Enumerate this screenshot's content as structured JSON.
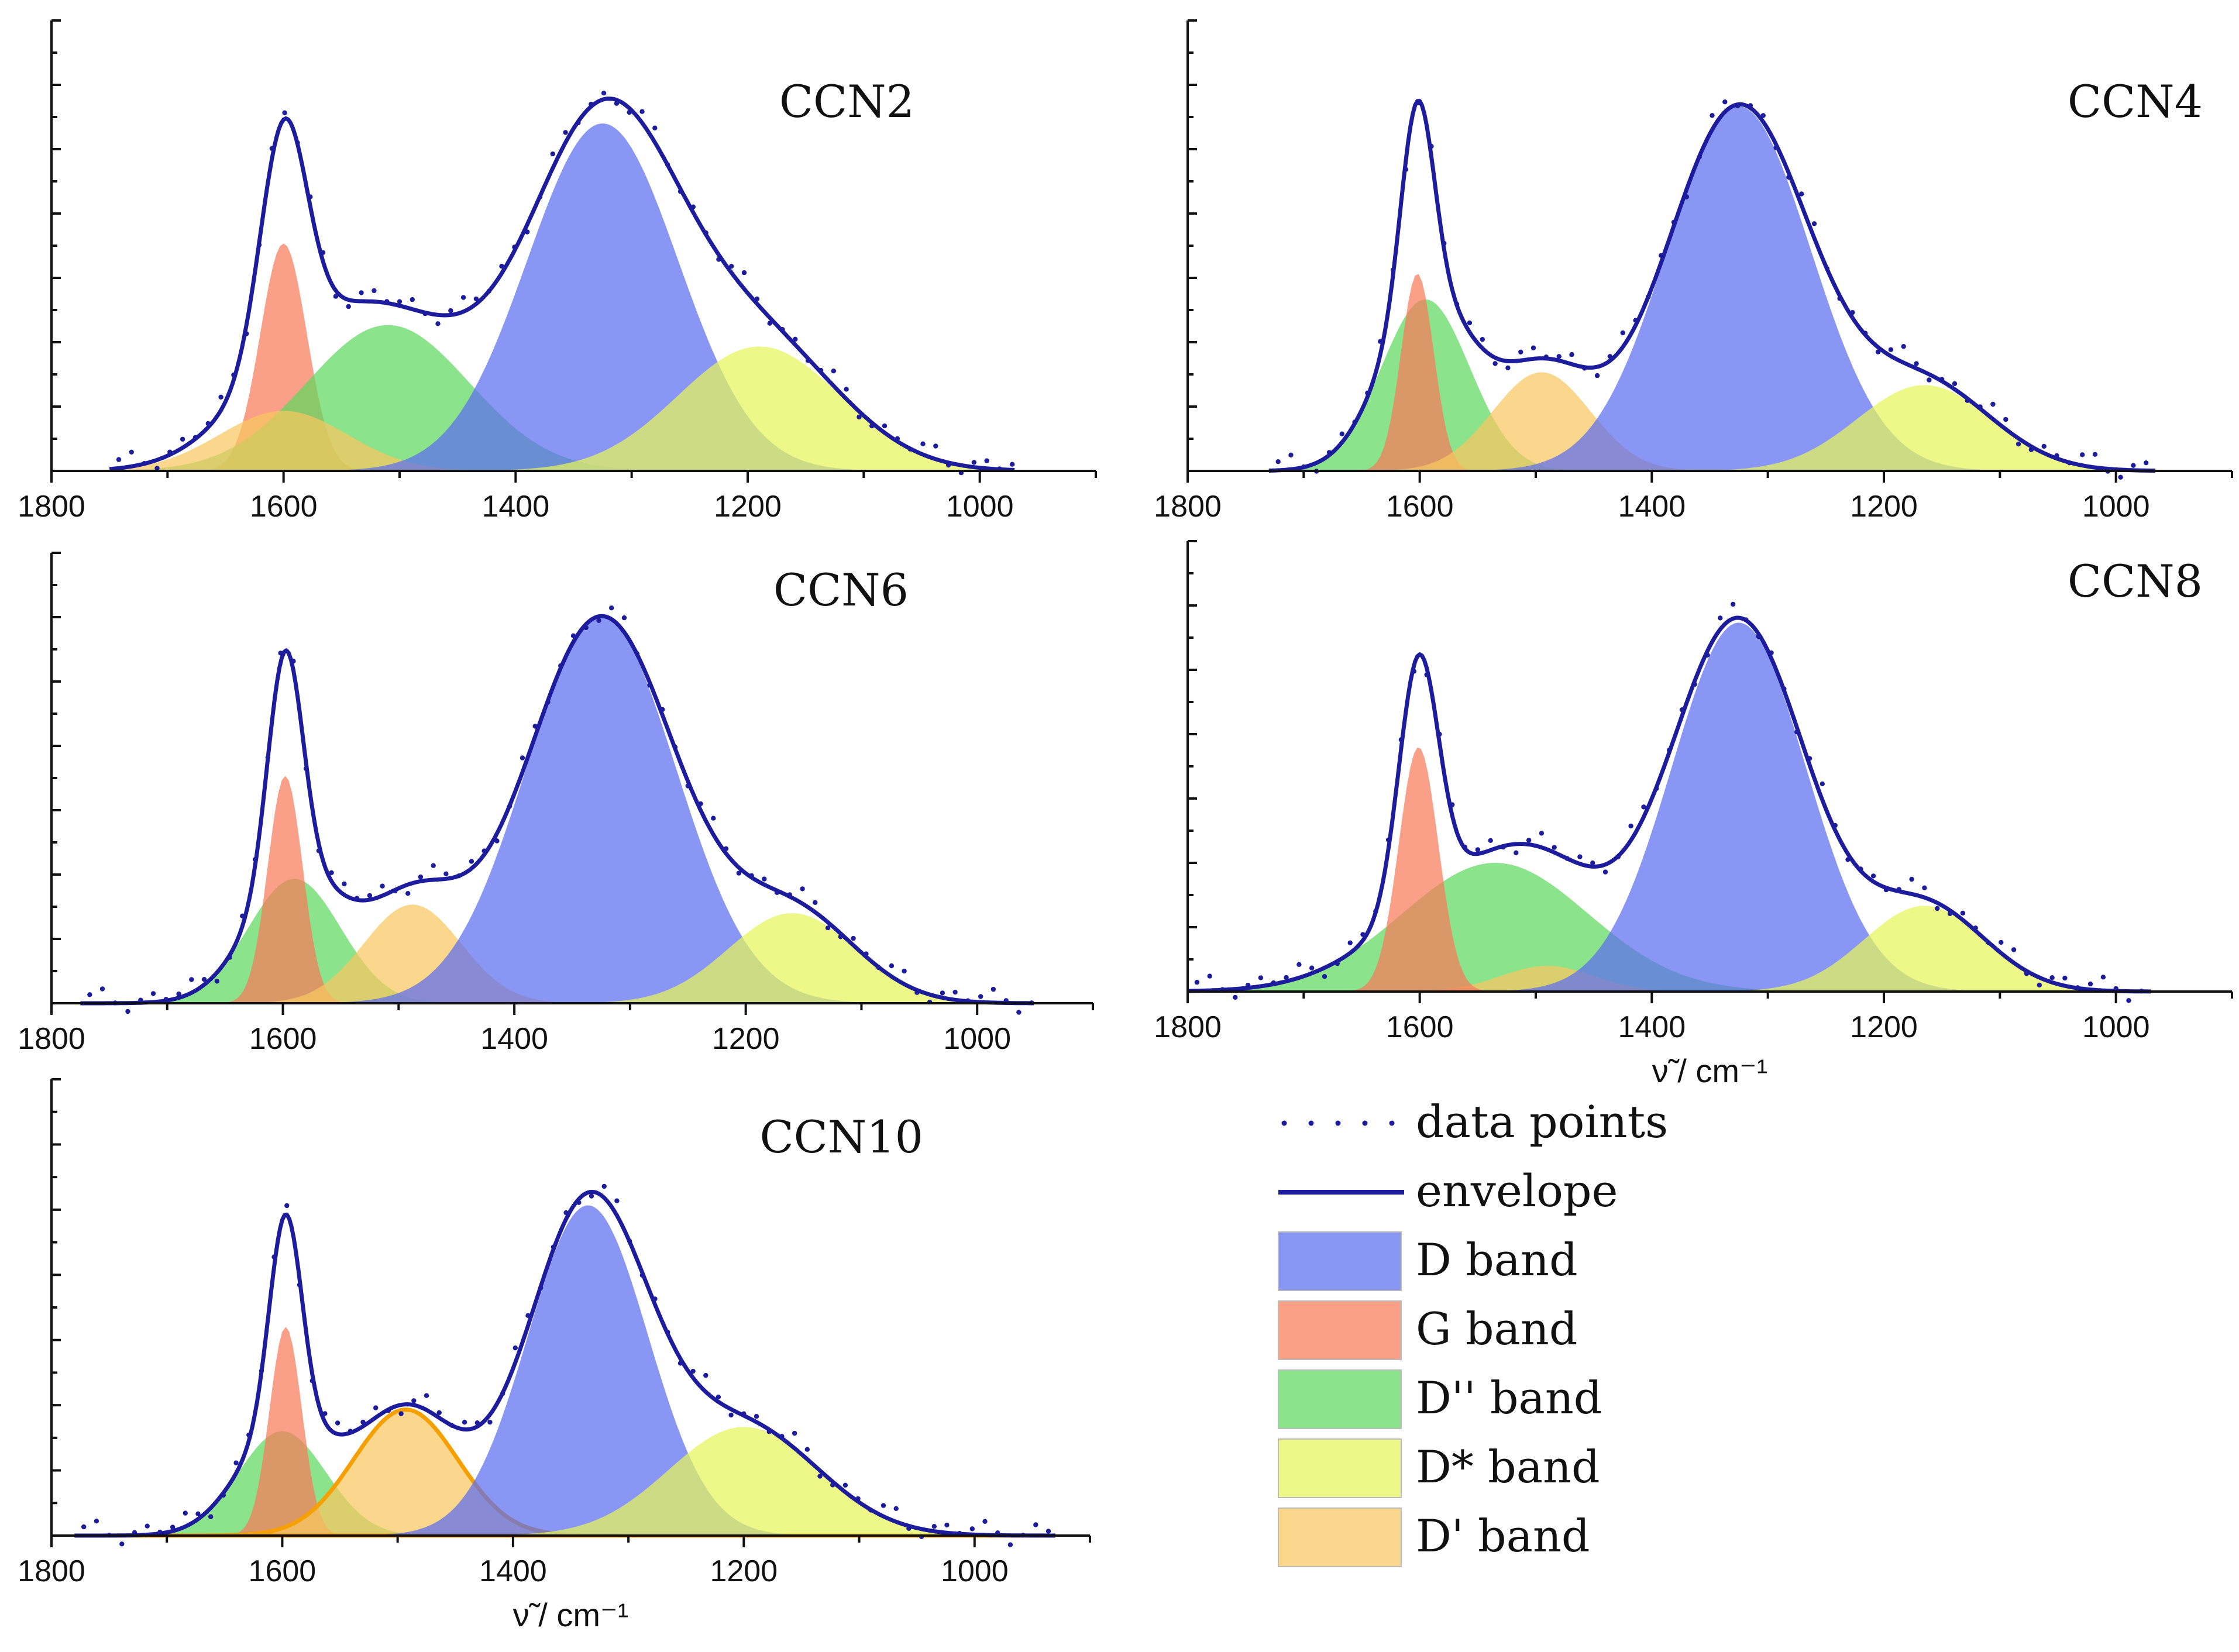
{
  "figure_type": "Raman spectra band deconvolution",
  "colors": {
    "D": "#5b6df0",
    "G": "#f87a5a",
    "D2": "#5ed85e",
    "Dstar": "#e8f55a",
    "Dprime": "#f8c860",
    "envelope": "#1c1c9c",
    "points": "#1c1c9c",
    "dprime_outline": "#f5a000"
  },
  "legend": {
    "items": [
      {
        "key": "points",
        "label": "data points"
      },
      {
        "key": "envelope",
        "label": "envelope"
      },
      {
        "key": "D",
        "label": "D band"
      },
      {
        "key": "G",
        "label": "G band"
      },
      {
        "key": "D2",
        "label": "D'' band"
      },
      {
        "key": "Dstar",
        "label": "D* band"
      },
      {
        "key": "Dprime",
        "label": "D' band"
      }
    ]
  },
  "chart_data": [
    {
      "type": "area",
      "title": "CCN2",
      "xlabel": "",
      "ylabel": "",
      "xlim": [
        1800,
        900
      ],
      "x_range": [
        1750,
        970
      ],
      "ylim": [
        0,
        1.05
      ],
      "xticks": [
        "1800",
        "1600",
        "1400",
        "1200",
        "1000"
      ],
      "series": [
        {
          "key": "G",
          "name": "G band",
          "center": 1600,
          "height": 0.53,
          "sigma": 20
        },
        {
          "key": "D2",
          "name": "D'' band",
          "center": 1510,
          "height": 0.34,
          "sigma": 70
        },
        {
          "key": "Dprime",
          "name": "D' band",
          "center": 1600,
          "height": 0.14,
          "sigma": 55
        },
        {
          "key": "D",
          "name": "D band",
          "center": 1325,
          "height": 0.81,
          "sigma": 65
        },
        {
          "key": "Dstar",
          "name": "D* band",
          "center": 1190,
          "height": 0.29,
          "sigma": 70
        }
      ]
    },
    {
      "type": "area",
      "title": "CCN4",
      "xlabel": "",
      "ylabel": "",
      "xlim": [
        1800,
        900
      ],
      "x_range": [
        1730,
        965
      ],
      "ylim": [
        0,
        1.05
      ],
      "xticks": [
        "1800",
        "1600",
        "1400",
        "1200",
        "1000"
      ],
      "series": [
        {
          "key": "D2",
          "name": "D'' band",
          "center": 1595,
          "height": 0.4,
          "sigma": 38
        },
        {
          "key": "G",
          "name": "G band",
          "center": 1602,
          "height": 0.46,
          "sigma": 14
        },
        {
          "key": "Dprime",
          "name": "D' band",
          "center": 1495,
          "height": 0.23,
          "sigma": 42
        },
        {
          "key": "D",
          "name": "D band",
          "center": 1325,
          "height": 0.85,
          "sigma": 62
        },
        {
          "key": "Dstar",
          "name": "D* band",
          "center": 1165,
          "height": 0.2,
          "sigma": 58
        }
      ]
    },
    {
      "type": "area",
      "title": "CCN6",
      "xlabel": "",
      "ylabel": "",
      "xlim": [
        1800,
        900
      ],
      "x_range": [
        1775,
        950
      ],
      "ylim": [
        0,
        1.05
      ],
      "xticks": [
        "1800",
        "1600",
        "1400",
        "1200",
        "1000"
      ],
      "series": [
        {
          "key": "D2",
          "name": "D'' band",
          "center": 1590,
          "height": 0.29,
          "sigma": 40
        },
        {
          "key": "G",
          "name": "G band",
          "center": 1598,
          "height": 0.53,
          "sigma": 15
        },
        {
          "key": "Dprime",
          "name": "D' band",
          "center": 1488,
          "height": 0.23,
          "sigma": 42
        },
        {
          "key": "D",
          "name": "D band",
          "center": 1325,
          "height": 0.9,
          "sigma": 65
        },
        {
          "key": "Dstar",
          "name": "D* band",
          "center": 1160,
          "height": 0.21,
          "sigma": 55
        }
      ]
    },
    {
      "type": "area",
      "title": "CCN8",
      "xlabel": "ν̃ / cm⁻¹",
      "ylabel": "",
      "xlim": [
        1800,
        900
      ],
      "x_range": [
        1800,
        970
      ],
      "ylim": [
        0,
        1.05
      ],
      "xticks": [
        "1800",
        "1600",
        "1400",
        "1200",
        "1000"
      ],
      "series": [
        {
          "key": "D2",
          "name": "D'' band",
          "center": 1535,
          "height": 0.3,
          "sigma": 80
        },
        {
          "key": "Dprime",
          "name": "D' band",
          "center": 1490,
          "height": 0.06,
          "sigma": 40
        },
        {
          "key": "G",
          "name": "G band",
          "center": 1601,
          "height": 0.57,
          "sigma": 17
        },
        {
          "key": "D",
          "name": "D band",
          "center": 1325,
          "height": 0.86,
          "sigma": 58
        },
        {
          "key": "Dstar",
          "name": "D* band",
          "center": 1165,
          "height": 0.2,
          "sigma": 52
        }
      ]
    },
    {
      "type": "area",
      "title": "CCN10",
      "xlabel": "ν̃ / cm⁻¹",
      "ylabel": "",
      "xlim": [
        1800,
        900
      ],
      "x_range": [
        1780,
        930
      ],
      "ylim": [
        0,
        1.05
      ],
      "xticks": [
        "1800",
        "1600",
        "1400",
        "1200",
        "1000"
      ],
      "series": [
        {
          "key": "D2",
          "name": "D'' band",
          "center": 1600,
          "height": 0.24,
          "sigma": 38
        },
        {
          "key": "G",
          "name": "G band",
          "center": 1597,
          "height": 0.48,
          "sigma": 14
        },
        {
          "key": "Dprime",
          "name": "D' band",
          "center": 1493,
          "height": 0.29,
          "sigma": 45
        },
        {
          "key": "D",
          "name": "D band",
          "center": 1335,
          "height": 0.76,
          "sigma": 52
        },
        {
          "key": "Dstar",
          "name": "D* band",
          "center": 1200,
          "height": 0.25,
          "sigma": 65
        }
      ]
    }
  ]
}
